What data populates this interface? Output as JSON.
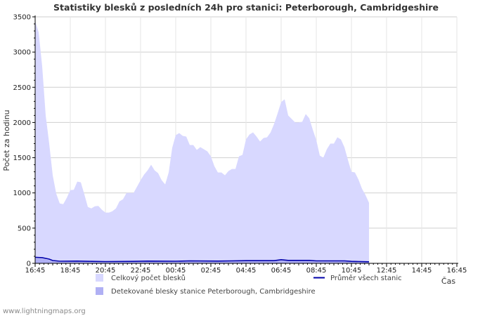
{
  "chart_data": {
    "type": "area",
    "title": "Statistiky blesků z posledních 24h pro stanici: Peterborough, Cambridgeshire",
    "xlabel": "Čas",
    "ylabel": "Počet za hodinu",
    "ylim": [
      0,
      3500
    ],
    "yticks": [
      0,
      500,
      1000,
      1500,
      2000,
      2500,
      3000,
      3500
    ],
    "xlim": [
      0,
      24
    ],
    "xticks": [
      {
        "x": 0,
        "label": "16:45"
      },
      {
        "x": 2,
        "label": "18:45"
      },
      {
        "x": 4,
        "label": "20:45"
      },
      {
        "x": 6,
        "label": "22:45"
      },
      {
        "x": 8,
        "label": "00:45"
      },
      {
        "x": 10,
        "label": "02:45"
      },
      {
        "x": 12,
        "label": "04:45"
      },
      {
        "x": 14,
        "label": "06:45"
      },
      {
        "x": 16,
        "label": "08:45"
      },
      {
        "x": 18,
        "label": "10:45"
      },
      {
        "x": 20,
        "label": "12:45"
      },
      {
        "x": 22,
        "label": "14:45"
      },
      {
        "x": 24,
        "label": "16:45"
      }
    ],
    "grid": true,
    "series": [
      {
        "name": "Celkový počet blesků",
        "kind": "area",
        "color": "#d8d8ff",
        "points": [
          [
            0,
            3440
          ],
          [
            0.2,
            3280
          ],
          [
            0.4,
            2800
          ],
          [
            0.6,
            2100
          ],
          [
            0.8,
            1700
          ],
          [
            1.0,
            1250
          ],
          [
            1.2,
            990
          ],
          [
            1.4,
            850
          ],
          [
            1.6,
            840
          ],
          [
            1.8,
            930
          ],
          [
            2.0,
            1040
          ],
          [
            2.2,
            1045
          ],
          [
            2.4,
            1160
          ],
          [
            2.6,
            1150
          ],
          [
            2.8,
            980
          ],
          [
            3.0,
            800
          ],
          [
            3.2,
            780
          ],
          [
            3.4,
            810
          ],
          [
            3.6,
            815
          ],
          [
            3.8,
            760
          ],
          [
            4.0,
            720
          ],
          [
            4.2,
            720
          ],
          [
            4.4,
            740
          ],
          [
            4.6,
            780
          ],
          [
            4.8,
            880
          ],
          [
            5.0,
            910
          ],
          [
            5.2,
            1000
          ],
          [
            5.4,
            1000
          ],
          [
            5.6,
            1000
          ],
          [
            5.8,
            1090
          ],
          [
            6.0,
            1180
          ],
          [
            6.2,
            1260
          ],
          [
            6.4,
            1320
          ],
          [
            6.6,
            1400
          ],
          [
            6.8,
            1320
          ],
          [
            7.0,
            1280
          ],
          [
            7.2,
            1180
          ],
          [
            7.4,
            1120
          ],
          [
            7.6,
            1290
          ],
          [
            7.8,
            1640
          ],
          [
            8.0,
            1820
          ],
          [
            8.2,
            1850
          ],
          [
            8.4,
            1810
          ],
          [
            8.6,
            1800
          ],
          [
            8.8,
            1680
          ],
          [
            9.0,
            1680
          ],
          [
            9.2,
            1610
          ],
          [
            9.4,
            1650
          ],
          [
            9.6,
            1620
          ],
          [
            9.8,
            1590
          ],
          [
            10.0,
            1520
          ],
          [
            10.2,
            1380
          ],
          [
            10.4,
            1290
          ],
          [
            10.6,
            1290
          ],
          [
            10.8,
            1250
          ],
          [
            11.0,
            1310
          ],
          [
            11.2,
            1340
          ],
          [
            11.4,
            1340
          ],
          [
            11.6,
            1520
          ],
          [
            11.8,
            1540
          ],
          [
            12.0,
            1760
          ],
          [
            12.2,
            1830
          ],
          [
            12.4,
            1860
          ],
          [
            12.6,
            1800
          ],
          [
            12.8,
            1730
          ],
          [
            13.0,
            1780
          ],
          [
            13.2,
            1790
          ],
          [
            13.4,
            1860
          ],
          [
            13.6,
            1980
          ],
          [
            13.8,
            2130
          ],
          [
            14.0,
            2290
          ],
          [
            14.2,
            2330
          ],
          [
            14.4,
            2100
          ],
          [
            14.6,
            2050
          ],
          [
            14.8,
            2000
          ],
          [
            15.0,
            2000
          ],
          [
            15.2,
            2010
          ],
          [
            15.4,
            2120
          ],
          [
            15.6,
            2060
          ],
          [
            15.8,
            1900
          ],
          [
            16.0,
            1750
          ],
          [
            16.2,
            1530
          ],
          [
            16.4,
            1500
          ],
          [
            16.6,
            1620
          ],
          [
            16.8,
            1700
          ],
          [
            17.0,
            1700
          ],
          [
            17.2,
            1790
          ],
          [
            17.4,
            1760
          ],
          [
            17.6,
            1650
          ],
          [
            17.8,
            1470
          ],
          [
            18.0,
            1300
          ],
          [
            18.2,
            1290
          ],
          [
            18.4,
            1190
          ],
          [
            18.6,
            1060
          ],
          [
            18.8,
            970
          ],
          [
            19.0,
            860
          ]
        ]
      },
      {
        "name": "Detekované blesky stanice Peterborough, Cambridgeshire",
        "kind": "area",
        "color": "#b0b0f4",
        "points": [
          [
            0,
            70
          ],
          [
            0.4,
            65
          ],
          [
            0.8,
            45
          ],
          [
            1.0,
            30
          ],
          [
            1.4,
            20
          ],
          [
            2.4,
            22
          ],
          [
            3.2,
            18
          ],
          [
            4.0,
            18
          ],
          [
            5.6,
            20
          ],
          [
            6.4,
            28
          ],
          [
            8.0,
            25
          ],
          [
            8.8,
            30
          ],
          [
            10.4,
            25
          ],
          [
            11.2,
            30
          ],
          [
            12.0,
            32
          ],
          [
            13.6,
            30
          ],
          [
            14.0,
            45
          ],
          [
            14.4,
            35
          ],
          [
            15.6,
            35
          ],
          [
            16.0,
            28
          ],
          [
            17.6,
            30
          ],
          [
            18.0,
            22
          ],
          [
            19.0,
            15
          ]
        ]
      },
      {
        "name": "Průměr všech stanic",
        "kind": "line",
        "color": "#0000aa",
        "points": [
          [
            0,
            85
          ],
          [
            0.4,
            80
          ],
          [
            0.8,
            60
          ],
          [
            1.0,
            40
          ],
          [
            1.4,
            30
          ],
          [
            2.4,
            32
          ],
          [
            3.2,
            28
          ],
          [
            4.0,
            25
          ],
          [
            5.6,
            28
          ],
          [
            6.4,
            32
          ],
          [
            8.0,
            30
          ],
          [
            8.8,
            35
          ],
          [
            10.4,
            32
          ],
          [
            11.2,
            35
          ],
          [
            12.0,
            38
          ],
          [
            13.6,
            38
          ],
          [
            14.0,
            52
          ],
          [
            14.4,
            42
          ],
          [
            15.6,
            42
          ],
          [
            16.0,
            35
          ],
          [
            17.6,
            35
          ],
          [
            18.0,
            28
          ],
          [
            19.0,
            22
          ]
        ]
      }
    ],
    "legend": {
      "placement": "bottom",
      "items": [
        {
          "label": "Celkový počet blesků",
          "color": "#d8d8ff",
          "kind": "box"
        },
        {
          "label": "Detekované blesky stanice Peterborough, Cambridgeshire",
          "color": "#b0b0f4",
          "kind": "box"
        },
        {
          "label": "Průměr všech stanic",
          "color": "#0000aa",
          "kind": "line"
        }
      ]
    },
    "footer": "www.lightningmaps.org"
  }
}
